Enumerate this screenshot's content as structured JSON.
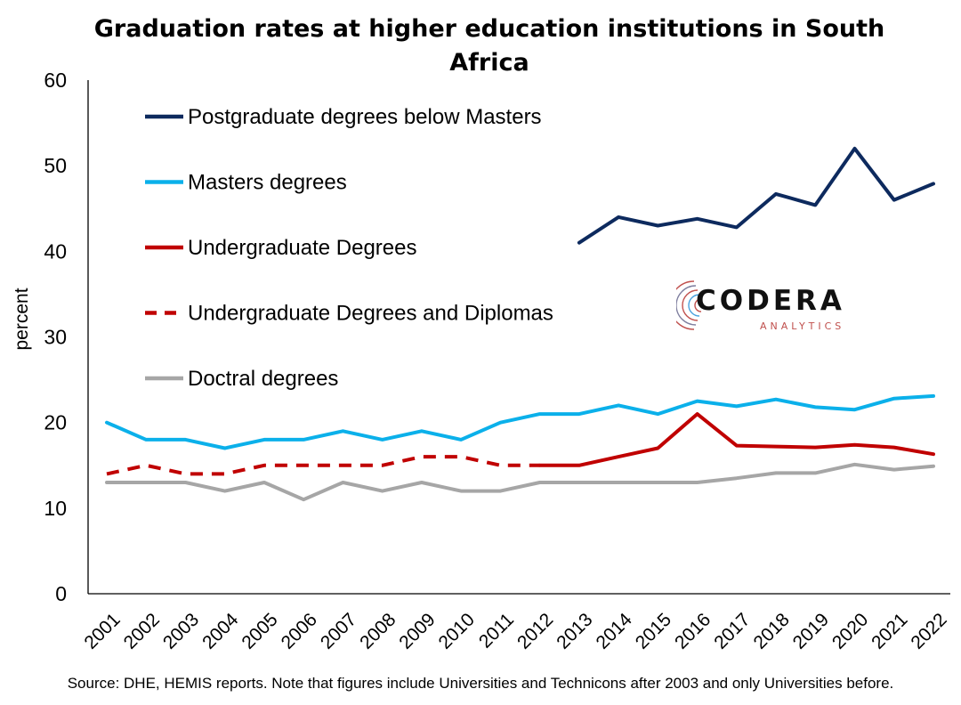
{
  "chart_data": {
    "type": "line",
    "title": "Graduation rates at higher education institutions in South Africa",
    "ylabel": "percent",
    "xlabel": "",
    "ylim": [
      0,
      60
    ],
    "yticks": [
      0,
      10,
      20,
      30,
      40,
      50,
      60
    ],
    "categories": [
      "2001",
      "2002",
      "2003",
      "2004",
      "2005",
      "2006",
      "2007",
      "2008",
      "2009",
      "2010",
      "2011",
      "2012",
      "2013",
      "2014",
      "2015",
      "2016",
      "2017",
      "2018",
      "2019",
      "2020",
      "2021",
      "2022"
    ],
    "legend_position": "top-left",
    "grid": false,
    "series": [
      {
        "name": "Postgraduate degrees below Masters",
        "color": "#0d2a5e",
        "dashed": false,
        "values": [
          null,
          null,
          null,
          null,
          null,
          null,
          null,
          null,
          null,
          null,
          null,
          null,
          41,
          44,
          43,
          43.8,
          42.8,
          46.7,
          45.4,
          52,
          46,
          47.9
        ]
      },
      {
        "name": "Masters degrees",
        "color": "#0bb0ea",
        "dashed": false,
        "values": [
          20,
          18,
          18,
          17,
          18,
          18,
          19,
          18,
          19,
          18,
          20,
          21,
          21,
          22,
          21,
          22.5,
          21.9,
          22.7,
          21.8,
          21.5,
          22.8,
          23.1
        ]
      },
      {
        "name": "Undergraduate Degrees",
        "color": "#c00000",
        "dashed": false,
        "values": [
          null,
          null,
          null,
          null,
          null,
          null,
          null,
          null,
          null,
          null,
          null,
          15,
          15,
          16,
          17,
          21,
          17.3,
          17.2,
          17.1,
          17.4,
          17.1,
          16.3
        ]
      },
      {
        "name": "Undergraduate Degrees and Diplomas",
        "color": "#c00000",
        "dashed": true,
        "values": [
          14,
          15,
          14,
          14,
          15,
          15,
          15,
          15,
          16,
          16,
          15,
          15,
          null,
          null,
          null,
          null,
          null,
          null,
          null,
          null,
          null,
          null
        ]
      },
      {
        "name": "Doctral degrees",
        "color": "#a6a6a6",
        "dashed": false,
        "values": [
          13,
          13,
          13,
          12,
          13,
          11,
          13,
          12,
          13,
          12,
          12,
          13,
          13,
          13,
          13,
          13,
          13.5,
          14.1,
          14.1,
          15.1,
          14.5,
          14.9
        ]
      }
    ]
  },
  "source_note": "Source: DHE, HEMIS reports. Note that figures include Universities and Technicons after 2003 and only Universities before.",
  "logo": {
    "word": "CODERA",
    "sub": "ANALYTICS",
    "accent": "#c0504d"
  }
}
